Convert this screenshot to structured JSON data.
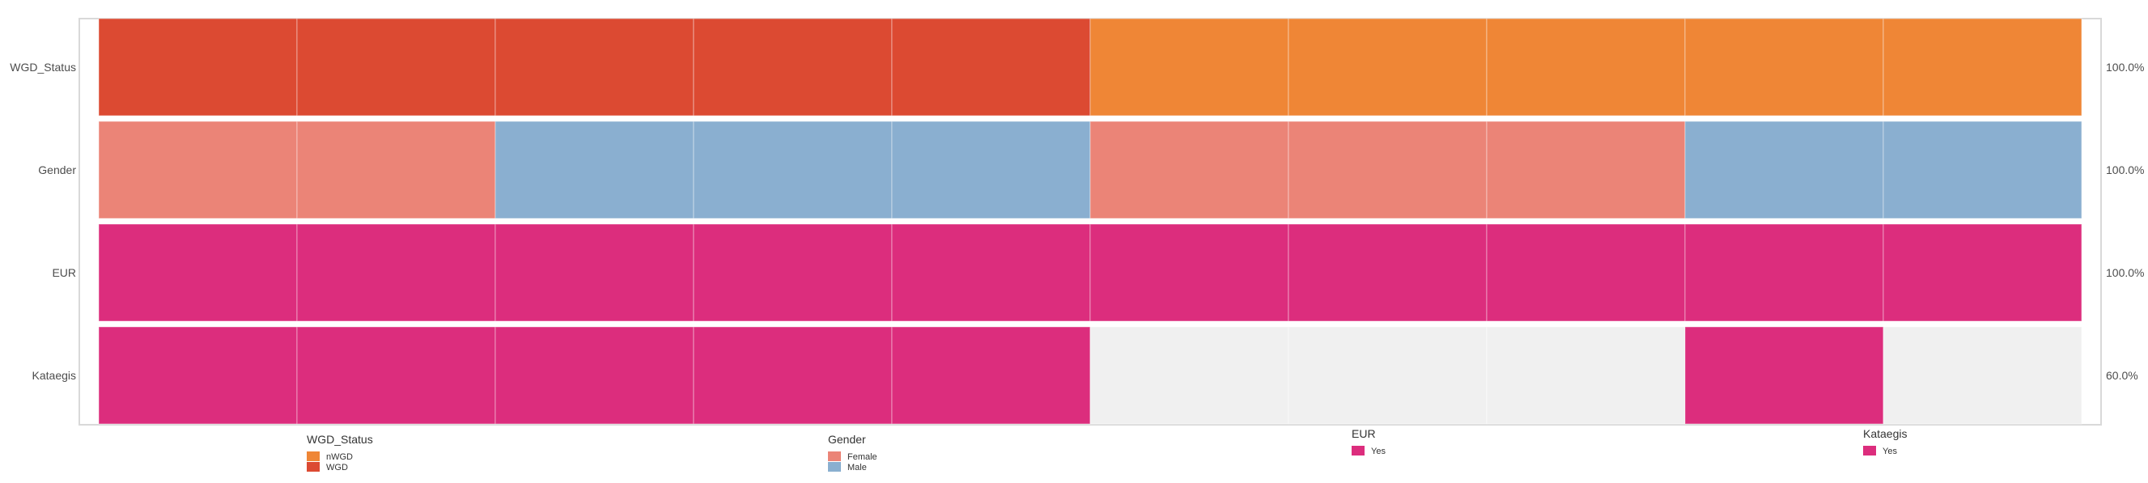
{
  "chart_data": {
    "type": "heatmap",
    "rows": [
      "WGD_Status",
      "Gender",
      "EUR",
      "Kataegis"
    ],
    "row_percentages": [
      "100.0%",
      "100.0%",
      "100.0%",
      "60.0%"
    ],
    "samples": 10,
    "cells": [
      [
        "WGD",
        "WGD",
        "WGD",
        "WGD",
        "WGD",
        "nWGD",
        "nWGD",
        "nWGD",
        "nWGD",
        "nWGD"
      ],
      [
        "Female",
        "Female",
        "Male",
        "Male",
        "Male",
        "Female",
        "Female",
        "Female",
        "Male",
        "Male"
      ],
      [
        "Yes",
        "Yes",
        "Yes",
        "Yes",
        "Yes",
        "Yes",
        "Yes",
        "Yes",
        "Yes",
        "Yes"
      ],
      [
        "Yes",
        "Yes",
        "Yes",
        "Yes",
        "Yes",
        null,
        null,
        null,
        "Yes",
        null
      ]
    ],
    "colors": {
      "WGD_Status": {
        "nWGD": "#ef8636",
        "WGD": "#dc4a32"
      },
      "Gender": {
        "Female": "#eb8477",
        "Male": "#8aafd0"
      },
      "EUR": {
        "Yes": "#dc2d7d"
      },
      "Kataegis": {
        "Yes": "#dc2d7d"
      },
      "missing": "#f0f0f0"
    },
    "legends": [
      {
        "title": "WGD_Status",
        "entries": [
          {
            "label": "nWGD",
            "color": "#ef8636"
          },
          {
            "label": "WGD",
            "color": "#dc4a32"
          }
        ]
      },
      {
        "title": "Gender",
        "entries": [
          {
            "label": "Female",
            "color": "#eb8477"
          },
          {
            "label": "Male",
            "color": "#8aafd0"
          }
        ]
      },
      {
        "title": "EUR",
        "entries": [
          {
            "label": "Yes",
            "color": "#dc2d7d"
          }
        ]
      },
      {
        "title": "Kataegis",
        "entries": [
          {
            "label": "Yes",
            "color": "#dc2d7d"
          }
        ]
      }
    ]
  }
}
